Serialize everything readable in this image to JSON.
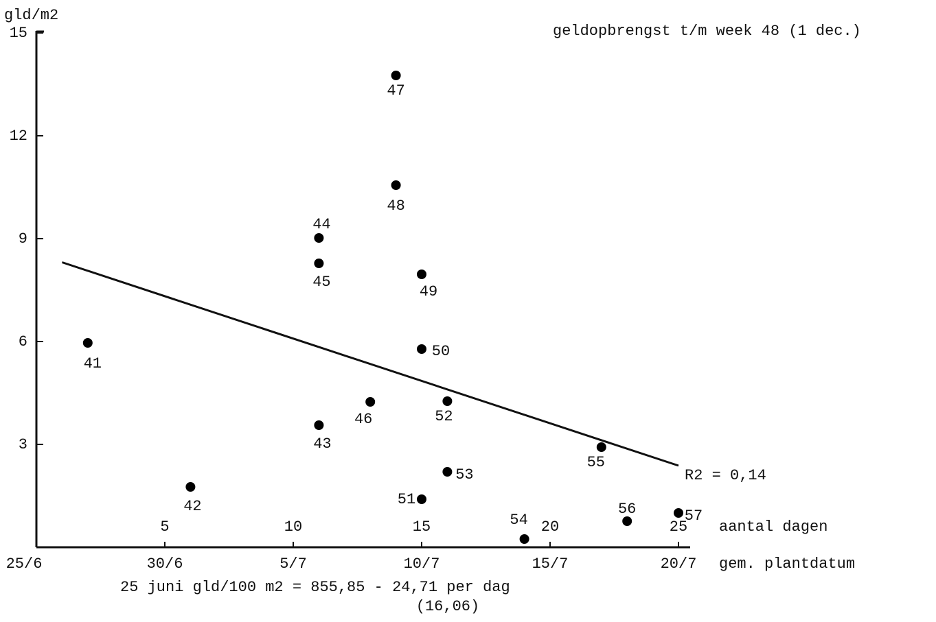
{
  "chart_data": {
    "type": "scatter",
    "title": "geldopbrengst t/m week 48 (1 dec.)",
    "y_label": "gld/m2",
    "x_label_days": "aantal dagen",
    "x_label_dates": "gem. plantdatum",
    "annotations": [
      "R2 = 0,14",
      "25 juni gld/100 m2 = 855,85 - 24,71 per dag",
      "(16,06)"
    ],
    "color": "#000000",
    "series": [
      {
        "name": null,
        "labels": [
          "41",
          "42",
          "43",
          "44",
          "45",
          "46",
          "47",
          "48",
          "49",
          "50",
          "51",
          "52",
          "53",
          "54",
          "55",
          "56",
          "57"
        ],
        "x": [
          2,
          6,
          11,
          11,
          11,
          13,
          14,
          14,
          15,
          15,
          15,
          16,
          16,
          19,
          22,
          23,
          25
        ],
        "values": [
          5.96,
          1.76,
          3.56,
          9.02,
          8.28,
          4.24,
          13.76,
          10.56,
          7.96,
          5.78,
          1.4,
          4.26,
          2.2,
          0.24,
          2.92,
          0.76,
          1.0
        ]
      }
    ],
    "fit_line": {
      "x": [
        1,
        25
      ],
      "values": [
        8.31,
        2.38
      ]
    },
    "xlim": [
      0,
      25.5
    ],
    "ylim": [
      0,
      15
    ],
    "yticks": [
      3,
      6,
      9,
      12,
      15
    ],
    "xticks": [
      5,
      10,
      15,
      20,
      25
    ],
    "xticks_dates": [
      {
        "value": 0,
        "label": "25/6"
      },
      {
        "value": 5,
        "label": "30/6"
      },
      {
        "value": 10,
        "label": "5/7"
      },
      {
        "value": 15,
        "label": "10/7"
      },
      {
        "value": 20,
        "label": "15/7"
      },
      {
        "value": 25,
        "label": "20/7"
      }
    ]
  }
}
